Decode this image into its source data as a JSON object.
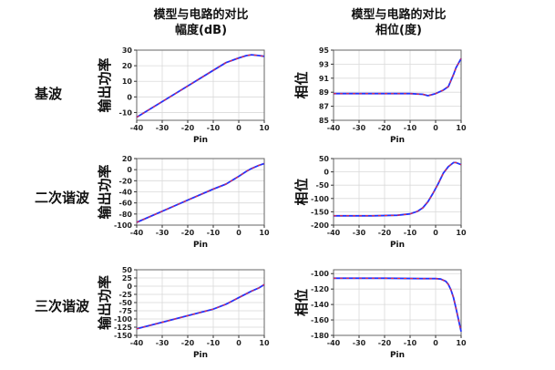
{
  "columns": [
    {
      "title": "模型与电路的对比",
      "subtitle": "幅度(dB)"
    },
    {
      "title": "模型与电路的对比",
      "subtitle": "相位(度)"
    }
  ],
  "rows": [
    "基波",
    "二次谐波",
    "三次谐波"
  ],
  "colors": {
    "model": "#ff2a2a",
    "circuit": "#2233ff",
    "grid": "#d9d9d9"
  },
  "chart_data": [
    {
      "id": "amp-fundamental",
      "type": "line",
      "xlabel": "Pin",
      "ylabel": "输出功率",
      "xlim": [
        -40,
        10
      ],
      "ylim": [
        -15,
        30
      ],
      "xticks": [
        -40,
        -30,
        -20,
        -10,
        0,
        10
      ],
      "yticks": [
        -10,
        0,
        10,
        20,
        30
      ],
      "series": [
        {
          "x": [
            -40,
            -30,
            -20,
            -10,
            -5,
            0,
            3,
            5,
            8,
            10
          ],
          "y": [
            -13,
            -3,
            7,
            17,
            22,
            25,
            26.5,
            27,
            26.5,
            26
          ]
        }
      ]
    },
    {
      "id": "phase-fundamental",
      "type": "line",
      "xlabel": "Pin",
      "ylabel": "相位",
      "xlim": [
        -40,
        10
      ],
      "ylim": [
        85,
        95
      ],
      "xticks": [
        -40,
        -30,
        -20,
        -10,
        0,
        10
      ],
      "yticks": [
        85,
        87,
        89,
        91,
        93,
        95
      ],
      "series": [
        {
          "x": [
            -40,
            -20,
            -10,
            -5,
            -3,
            0,
            3,
            5,
            7,
            8,
            10
          ],
          "y": [
            88.8,
            88.8,
            88.8,
            88.7,
            88.5,
            88.8,
            89.3,
            89.8,
            91.5,
            92.5,
            93.8
          ]
        }
      ]
    },
    {
      "id": "amp-2nd-harmonic",
      "type": "line",
      "xlabel": "Pin",
      "ylabel": "输出功率",
      "xlim": [
        -40,
        10
      ],
      "ylim": [
        -100,
        20
      ],
      "xticks": [
        -40,
        -30,
        -20,
        -10,
        0,
        10
      ],
      "yticks": [
        -100,
        -80,
        -60,
        -40,
        -20,
        0,
        20
      ],
      "series": [
        {
          "x": [
            -40,
            -30,
            -20,
            -10,
            -5,
            0,
            3,
            5,
            8,
            10
          ],
          "y": [
            -95,
            -75,
            -55,
            -35,
            -26,
            -12,
            -3,
            2,
            8,
            11
          ]
        }
      ]
    },
    {
      "id": "phase-2nd-harmonic",
      "type": "line",
      "xlabel": "Pin",
      "ylabel": "相位",
      "xlim": [
        -40,
        10
      ],
      "ylim": [
        -200,
        50
      ],
      "xticks": [
        -40,
        -30,
        -20,
        -10,
        0,
        10
      ],
      "yticks": [
        -200,
        -150,
        -100,
        -50,
        0,
        50
      ],
      "series": [
        {
          "x": [
            -40,
            -25,
            -15,
            -10,
            -7,
            -5,
            -3,
            -1,
            1,
            3,
            5,
            7,
            8,
            10
          ],
          "y": [
            -165,
            -165,
            -163,
            -158,
            -148,
            -135,
            -112,
            -80,
            -45,
            -5,
            20,
            35,
            35,
            27
          ]
        }
      ]
    },
    {
      "id": "amp-3rd-harmonic",
      "type": "line",
      "xlabel": "Pin",
      "ylabel": "输出功率",
      "xlim": [
        -40,
        10
      ],
      "ylim": [
        -150,
        50
      ],
      "xticks": [
        -40,
        -30,
        -20,
        -10,
        0,
        10
      ],
      "yticks": [
        -150,
        -125,
        -100,
        -75,
        -50,
        -25,
        0,
        25,
        50
      ],
      "series": [
        {
          "x": [
            -40,
            -30,
            -20,
            -10,
            -5,
            0,
            5,
            8,
            10
          ],
          "y": [
            -130,
            -110,
            -90,
            -70,
            -55,
            -35,
            -15,
            -5,
            5
          ]
        }
      ]
    },
    {
      "id": "phase-3rd-harmonic",
      "type": "line",
      "xlabel": "Pin",
      "ylabel": "相位",
      "xlim": [
        -40,
        10
      ],
      "ylim": [
        -180,
        -95
      ],
      "xticks": [
        -40,
        -30,
        -20,
        -10,
        0,
        10
      ],
      "yticks": [
        -180,
        -160,
        -140,
        -120,
        -100
      ],
      "series": [
        {
          "x": [
            -40,
            -20,
            -5,
            0,
            2,
            4,
            5,
            6,
            7,
            8,
            9,
            10
          ],
          "y": [
            -106,
            -106,
            -106.5,
            -106.5,
            -107,
            -110,
            -114,
            -121,
            -131,
            -145,
            -160,
            -175
          ]
        }
      ]
    }
  ]
}
